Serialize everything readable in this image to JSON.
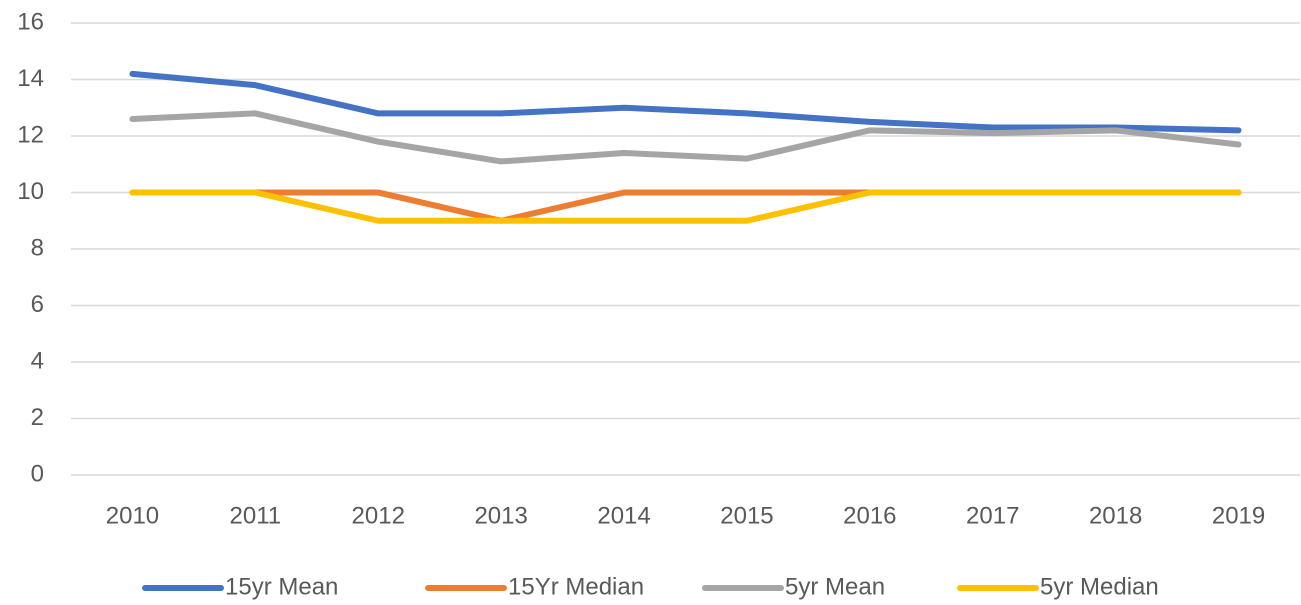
{
  "chart_data": {
    "type": "line",
    "categories": [
      "2010",
      "2011",
      "2012",
      "2013",
      "2014",
      "2015",
      "2016",
      "2017",
      "2018",
      "2019"
    ],
    "series": [
      {
        "name": "15yr Mean",
        "color": "#4472c4",
        "values": [
          14.2,
          13.8,
          12.8,
          12.8,
          13.0,
          12.8,
          12.5,
          12.3,
          12.3,
          12.2
        ]
      },
      {
        "name": "15Yr Median",
        "color": "#ed7d31",
        "values": [
          10,
          10,
          10,
          9,
          10,
          10,
          10,
          10,
          10,
          10
        ]
      },
      {
        "name": "5yr Mean",
        "color": "#a5a5a5",
        "values": [
          12.6,
          12.8,
          11.8,
          11.1,
          11.4,
          11.2,
          12.2,
          12.1,
          12.2,
          11.7
        ]
      },
      {
        "name": "5yr Median",
        "color": "#ffc000",
        "values": [
          10,
          10,
          9,
          9,
          9,
          9,
          10,
          10,
          10,
          10
        ]
      }
    ],
    "ylim": [
      0,
      16
    ],
    "yticks": [
      0,
      2,
      4,
      6,
      8,
      10,
      12,
      14,
      16
    ],
    "grid": true,
    "legend": "bottom"
  }
}
